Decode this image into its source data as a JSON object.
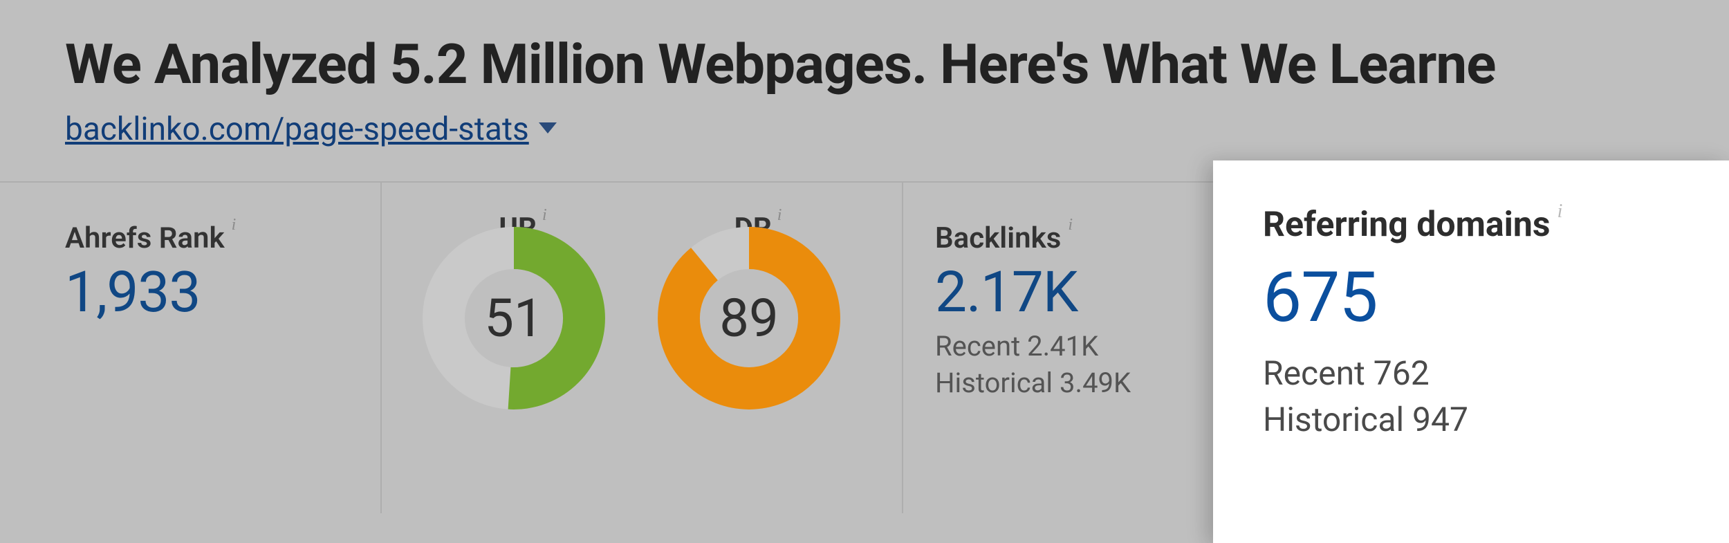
{
  "header": {
    "title": "We Analyzed 5.2 Million Webpages. Here's What We Learne",
    "url": "backlinko.com/page-speed-stats",
    "dropdown_icon_color": "#2a4b7a"
  },
  "metrics": {
    "rank": {
      "label": "Ahrefs Rank",
      "value": "1,933",
      "value_color": "#104784"
    },
    "ur": {
      "label": "UR",
      "value": "51",
      "percent": 51,
      "ring_color": "#73a92f",
      "track_color": "#c9c9c9",
      "ring_width": 42
    },
    "dr": {
      "label": "DR",
      "value": "89",
      "percent": 89,
      "ring_color": "#ea8c0c",
      "track_color": "#c9c9c9",
      "ring_width": 42
    },
    "backlinks": {
      "label": "Backlinks",
      "value": "2.17K",
      "recent_label": "Recent",
      "recent_value": "2.41K",
      "historical_label": "Historical",
      "historical_value": "3.49K"
    },
    "referring_domains": {
      "label": "Referring domains",
      "value": "675",
      "recent_label": "Recent",
      "recent_value": "762",
      "historical_label": "Historical",
      "historical_value": "947"
    }
  },
  "colors": {
    "page_bg_dimmed": "#bfbfbf",
    "popover_bg": "#ffffff",
    "border": "#aeaeae",
    "text_primary": "#2f2f2f",
    "text_secondary": "#545454",
    "link": "#113d78"
  }
}
